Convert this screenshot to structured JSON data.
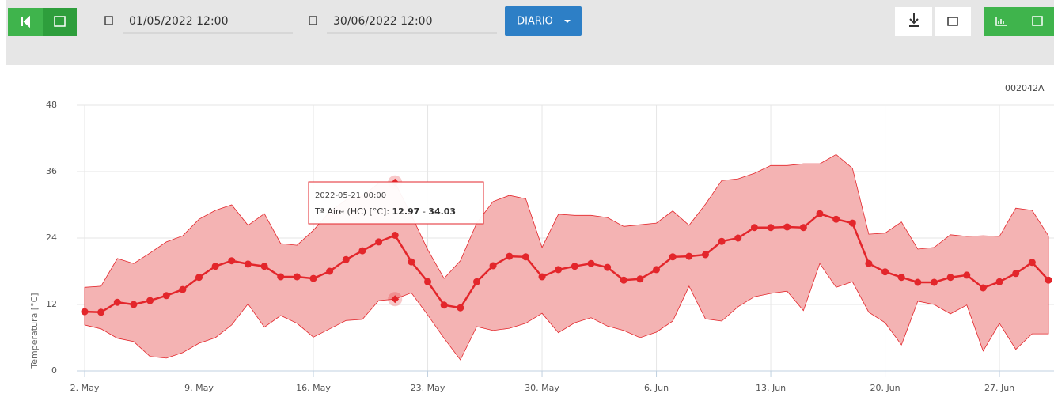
{
  "toolbar": {
    "date_from": "01/05/2022 12:00",
    "date_to": "30/06/2022 12:00",
    "period": "DIARIO"
  },
  "chart_data": {
    "type": "line",
    "corner_label": "002042A",
    "ylabel": "Temperatura [°C]",
    "ylim": [
      0,
      48
    ],
    "yticks": [
      0,
      12,
      24,
      36,
      48
    ],
    "grid": true,
    "xlim": [
      "2022-05-02",
      "2022-06-30"
    ],
    "xticks": [
      {
        "value": "2022-05-02",
        "label": "2. May"
      },
      {
        "value": "2022-05-09",
        "label": "9. May"
      },
      {
        "value": "2022-05-16",
        "label": "16. May"
      },
      {
        "value": "2022-05-23",
        "label": "23. May"
      },
      {
        "value": "2022-05-30",
        "label": "30. May"
      },
      {
        "value": "2022-06-06",
        "label": "6. Jun"
      },
      {
        "value": "2022-06-13",
        "label": "13. Jun"
      },
      {
        "value": "2022-06-20",
        "label": "20. Jun"
      },
      {
        "value": "2022-06-27",
        "label": "27. Jun"
      }
    ],
    "x": [
      "2022-05-02",
      "2022-05-03",
      "2022-05-04",
      "2022-05-05",
      "2022-05-06",
      "2022-05-07",
      "2022-05-08",
      "2022-05-09",
      "2022-05-10",
      "2022-05-11",
      "2022-05-12",
      "2022-05-13",
      "2022-05-14",
      "2022-05-15",
      "2022-05-16",
      "2022-05-17",
      "2022-05-18",
      "2022-05-19",
      "2022-05-20",
      "2022-05-21",
      "2022-05-22",
      "2022-05-23",
      "2022-05-24",
      "2022-05-25",
      "2022-05-26",
      "2022-05-27",
      "2022-05-28",
      "2022-05-29",
      "2022-05-30",
      "2022-05-31",
      "2022-06-01",
      "2022-06-02",
      "2022-06-03",
      "2022-06-04",
      "2022-06-05",
      "2022-06-06",
      "2022-06-07",
      "2022-06-08",
      "2022-06-09",
      "2022-06-10",
      "2022-06-11",
      "2022-06-12",
      "2022-06-13",
      "2022-06-14",
      "2022-06-15",
      "2022-06-16",
      "2022-06-17",
      "2022-06-18",
      "2022-06-19",
      "2022-06-20",
      "2022-06-21",
      "2022-06-22",
      "2022-06-23",
      "2022-06-24",
      "2022-06-25",
      "2022-06-26",
      "2022-06-27",
      "2022-06-28",
      "2022-06-29",
      "2022-06-30"
    ],
    "series": [
      {
        "name": "Tª Aire (HC) [°C]",
        "color": "#e3262b",
        "values": [
          10.7,
          10.6,
          12.4,
          12.0,
          12.7,
          13.6,
          14.7,
          16.9,
          18.9,
          19.9,
          19.3,
          18.9,
          17.0,
          17.0,
          16.7,
          18.0,
          20.1,
          21.7,
          23.3,
          24.5,
          19.7,
          16.1,
          11.9,
          11.4,
          16.1,
          19.0,
          20.7,
          20.6,
          17.0,
          18.3,
          18.9,
          19.4,
          18.7,
          16.4,
          16.6,
          18.3,
          20.6,
          20.7,
          21.0,
          23.4,
          24.0,
          25.9,
          25.9,
          26.0,
          25.9,
          28.4,
          27.4,
          26.7,
          19.4,
          17.9,
          16.9,
          16.0,
          16.0,
          16.9,
          17.3,
          15.0,
          16.1,
          17.6,
          19.6,
          16.4
        ]
      }
    ],
    "range": {
      "color": "#f4b3b3",
      "low": [
        8.3,
        7.6,
        5.9,
        5.3,
        2.6,
        2.3,
        3.3,
        5.0,
        6.0,
        8.3,
        12.1,
        7.9,
        10.0,
        8.6,
        6.1,
        7.6,
        9.1,
        9.3,
        12.7,
        12.97,
        14.1,
        10.1,
        5.9,
        2.0,
        8.0,
        7.3,
        7.7,
        8.6,
        10.4,
        6.9,
        8.7,
        9.6,
        8.1,
        7.3,
        6.0,
        7.0,
        9.0,
        15.3,
        9.4,
        9.0,
        11.6,
        13.4,
        14.0,
        14.4,
        10.9,
        19.4,
        15.1,
        16.1,
        10.6,
        8.7,
        4.7,
        12.6,
        12.0,
        10.3,
        11.9,
        3.6,
        8.6,
        3.9,
        6.7,
        6.7
      ],
      "high": [
        15.1,
        15.3,
        20.3,
        19.4,
        21.3,
        23.3,
        24.4,
        27.4,
        29.0,
        30.0,
        26.3,
        28.4,
        23.0,
        22.7,
        25.4,
        28.7,
        30.9,
        31.6,
        33.9,
        34.03,
        28.1,
        21.9,
        16.7,
        19.9,
        26.7,
        30.6,
        31.7,
        31.1,
        22.3,
        28.3,
        28.1,
        28.1,
        27.7,
        26.1,
        26.4,
        26.7,
        28.9,
        26.3,
        30.1,
        34.4,
        34.7,
        35.7,
        37.1,
        37.1,
        37.4,
        37.4,
        39.1,
        36.6,
        24.7,
        24.9,
        26.9,
        22.0,
        22.3,
        24.6,
        24.3,
        24.4,
        24.3,
        29.4,
        29.0,
        24.4
      ]
    },
    "tooltip": {
      "label": "2022-05-21 00:00",
      "index": 19
    }
  }
}
